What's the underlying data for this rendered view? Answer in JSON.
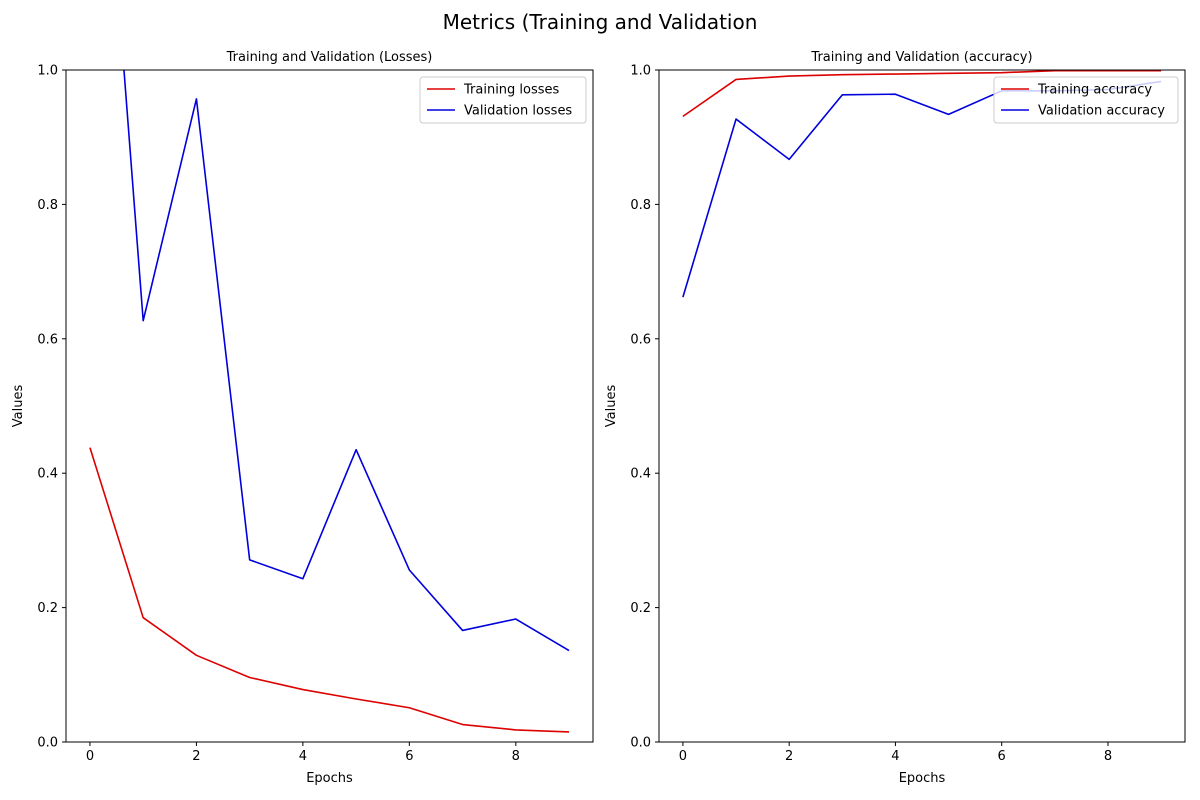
{
  "figure": {
    "suptitle": "Metrics (Training and Validation"
  },
  "chart_data": [
    {
      "type": "line",
      "title": "Training and Validation (Losses)",
      "xlabel": "Epochs",
      "ylabel": "Values",
      "xlim": [
        -0.45,
        9.45
      ],
      "ylim": [
        0,
        1
      ],
      "xticks": [
        "0",
        "2",
        "4",
        "6",
        "8"
      ],
      "yticks": [
        "0.0",
        "0.2",
        "0.4",
        "0.6",
        "0.8",
        "1.0"
      ],
      "grid": false,
      "legend_position": "top-right",
      "x": [
        0,
        1,
        2,
        3,
        4,
        5,
        6,
        7,
        8,
        9
      ],
      "series": [
        {
          "name": "Training losses",
          "color": "#dd0000",
          "values": [
            0.438,
            0.185,
            0.129,
            0.096,
            0.078,
            0.064,
            0.051,
            0.026,
            0.018,
            0.015
          ]
        },
        {
          "name": "Validation losses",
          "color": "#0000dd",
          "values": [
            1.66,
            0.627,
            0.957,
            0.271,
            0.243,
            0.435,
            0.256,
            0.166,
            0.183,
            0.136
          ]
        }
      ]
    },
    {
      "type": "line",
      "title": "Training and Validation (accuracy)",
      "xlabel": "Epochs",
      "ylabel": "Values",
      "xlim": [
        -0.45,
        9.45
      ],
      "ylim": [
        0,
        1
      ],
      "xticks": [
        "0",
        "2",
        "4",
        "6",
        "8"
      ],
      "yticks": [
        "0.0",
        "0.2",
        "0.4",
        "0.6",
        "0.8",
        "1.0"
      ],
      "grid": false,
      "legend_position": "top-right",
      "x": [
        0,
        1,
        2,
        3,
        4,
        5,
        6,
        7,
        8,
        9
      ],
      "series": [
        {
          "name": "Training accuracy",
          "color": "#dd0000",
          "values": [
            0.931,
            0.986,
            0.991,
            0.993,
            0.994,
            0.995,
            0.996,
            0.999,
            0.999,
            0.999
          ]
        },
        {
          "name": "Validation accuracy",
          "color": "#0000dd",
          "values": [
            0.662,
            0.927,
            0.867,
            0.963,
            0.964,
            0.934,
            0.969,
            0.969,
            0.971,
            0.983
          ]
        }
      ]
    }
  ]
}
